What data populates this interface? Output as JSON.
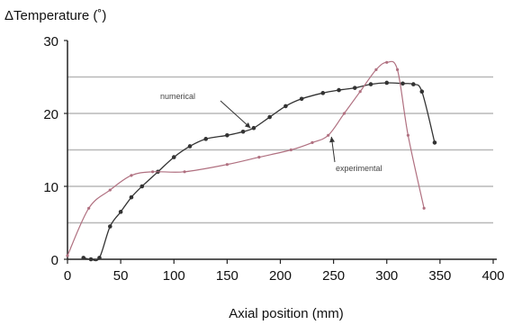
{
  "chart_data": {
    "type": "line",
    "title": "",
    "xlabel": "Axial position (mm)",
    "ylabel": "ΔTemperature (˚)",
    "xlim": [
      0,
      400
    ],
    "ylim": [
      0,
      30
    ],
    "x_ticks": [
      0,
      50,
      100,
      150,
      200,
      250,
      300,
      350,
      400
    ],
    "y_ticks": [
      0,
      10,
      20,
      30
    ],
    "grid": "horizontal lines at 5, 15, 20, 25 (pale gray between ticks)",
    "legend": "none; series named by inline annotations with arrows",
    "series": [
      {
        "name": "numerical",
        "color": "#333333",
        "marker": "filled-circle",
        "x": [
          15,
          22,
          30,
          40,
          50,
          60,
          70,
          85,
          100,
          115,
          130,
          150,
          165,
          175,
          190,
          205,
          220,
          240,
          255,
          270,
          285,
          300,
          315,
          325,
          333,
          345
        ],
        "y": [
          0.2,
          0,
          0.2,
          4.5,
          6.5,
          8.5,
          10,
          12,
          14,
          15.5,
          16.5,
          17,
          17.5,
          18,
          19.5,
          21,
          22,
          22.8,
          23.2,
          23.5,
          24,
          24.2,
          24.1,
          24,
          23,
          16
        ]
      },
      {
        "name": "experimental",
        "color": "#b07080",
        "marker": "small-circle",
        "x": [
          0,
          20,
          40,
          60,
          80,
          110,
          150,
          180,
          210,
          230,
          245,
          260,
          275,
          290,
          300,
          310,
          320,
          335
        ],
        "y": [
          0.5,
          7,
          9.5,
          11.5,
          12,
          12,
          13,
          14,
          15,
          16,
          17,
          20,
          23,
          26,
          27,
          26,
          17,
          7
        ]
      }
    ],
    "annotations": [
      {
        "text": "numerical",
        "points_to": [
          172,
          18
        ]
      },
      {
        "text": "experimental",
        "points_to": [
          248,
          16.8
        ]
      }
    ]
  }
}
